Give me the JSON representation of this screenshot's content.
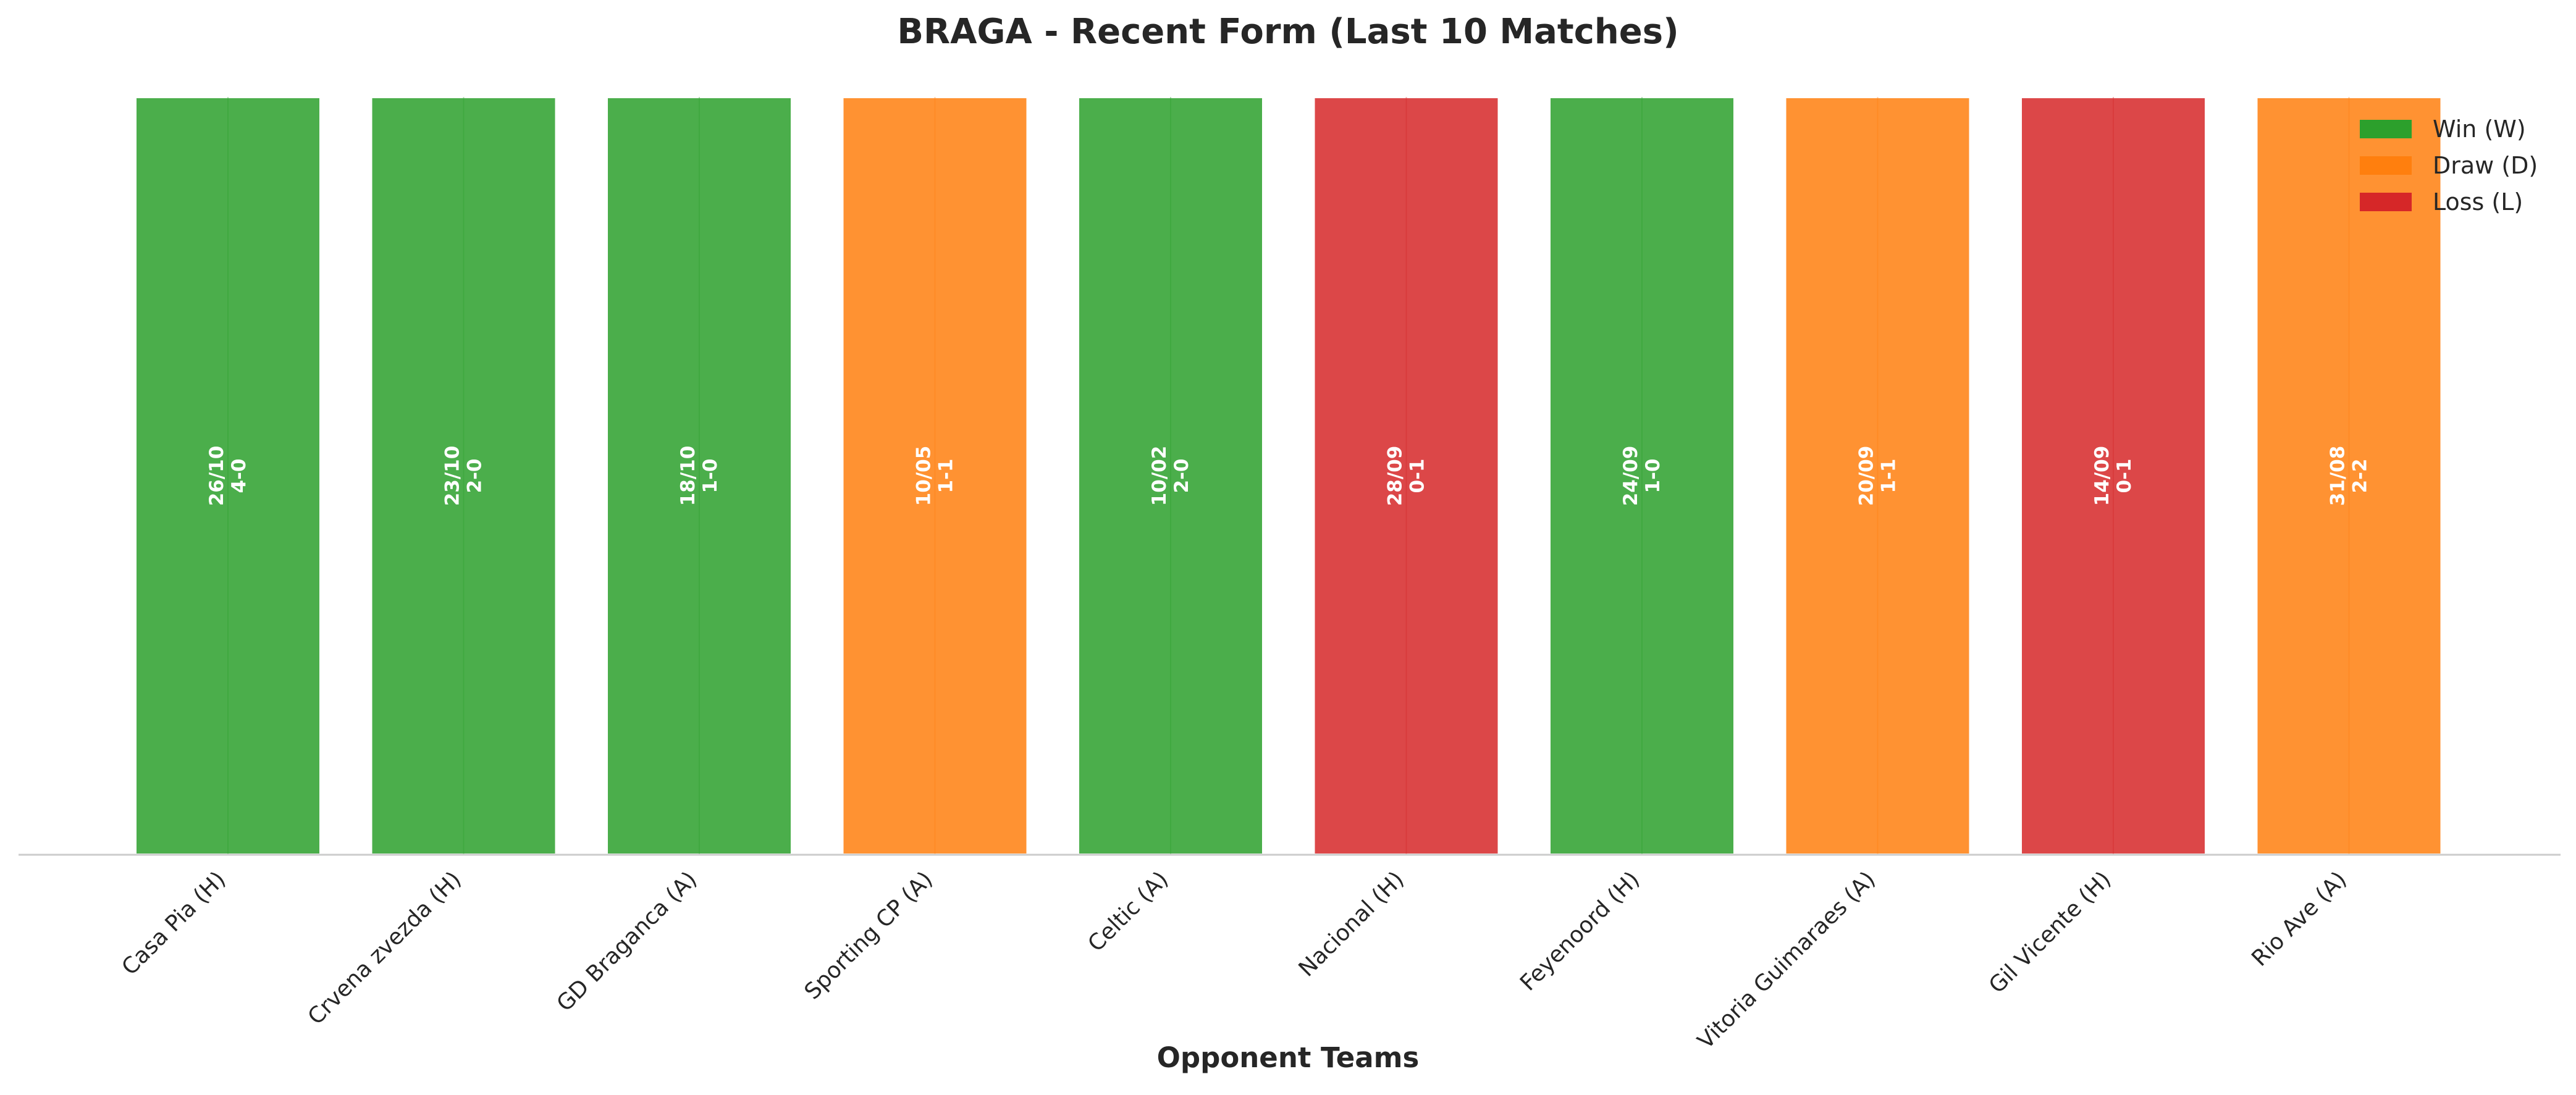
{
  "chart_data": {
    "type": "bar",
    "title": "BRAGA - Recent Form (Last 10 Matches)",
    "xlabel": "Opponent Teams",
    "ylabel": "",
    "ylim": [
      0,
      1
    ],
    "grid": false,
    "legend_position": "top-right",
    "categories": [
      "Casa Pia (H)",
      "Crvena zvezda (H)",
      "GD Braganca (A)",
      "Sporting CP (A)",
      "Celtic (A)",
      "Nacional (H)",
      "Feyenoord (H)",
      "Vitoria Guimaraes (A)",
      "Gil Vicente (H)",
      "Rio Ave (A)"
    ],
    "values": [
      1,
      1,
      1,
      1,
      1,
      1,
      1,
      1,
      1,
      1
    ],
    "results": [
      "W",
      "W",
      "W",
      "D",
      "W",
      "L",
      "W",
      "D",
      "L",
      "D"
    ],
    "dates": [
      "26/10",
      "23/10",
      "18/10",
      "10/05",
      "10/02",
      "28/09",
      "24/09",
      "20/09",
      "14/09",
      "31/08"
    ],
    "scores": [
      "4-0",
      "2-0",
      "1-0",
      "1-1",
      "2-0",
      "0-1",
      "1-0",
      "1-1",
      "0-1",
      "2-2"
    ],
    "legend": [
      {
        "key": "W",
        "label": "Win (W)",
        "color": "#2ca02c"
      },
      {
        "key": "D",
        "label": "Draw (D)",
        "color": "#ff7f0e"
      },
      {
        "key": "L",
        "label": "Loss (L)",
        "color": "#d62728"
      }
    ]
  }
}
